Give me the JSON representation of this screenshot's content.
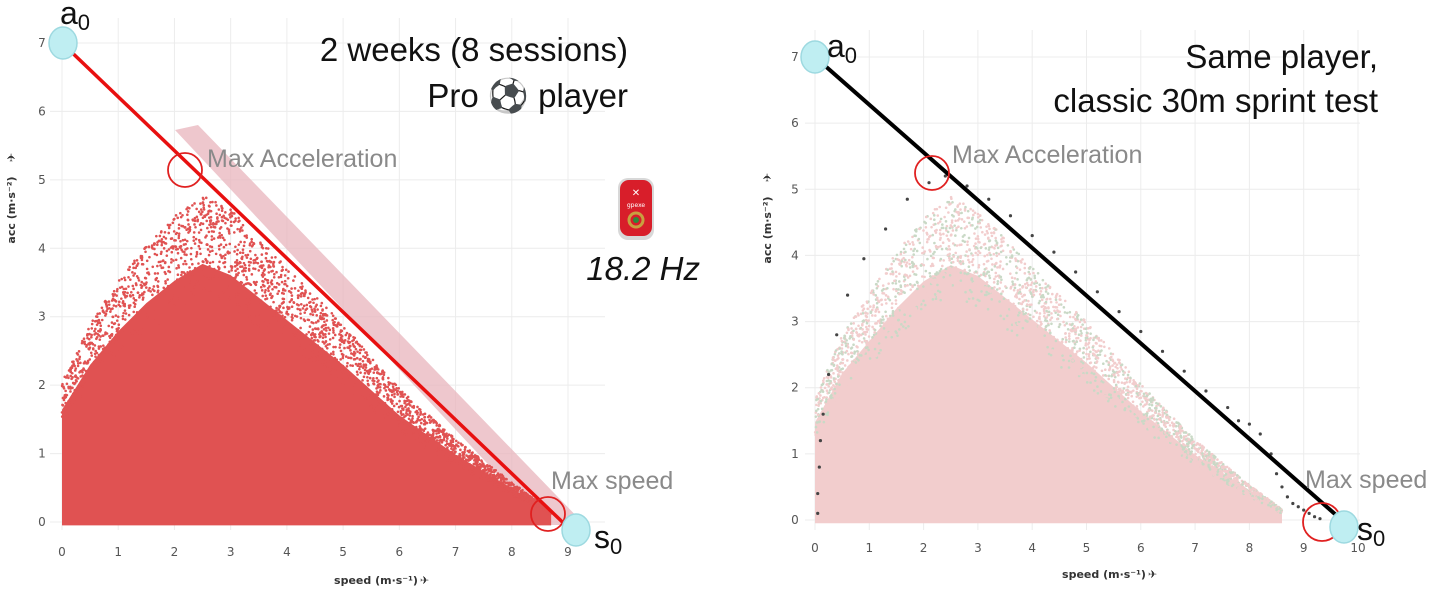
{
  "colors": {
    "left_points": "#e05252",
    "left_line": "#e81010",
    "left_band": "#e8b4bc",
    "right_bg_points": "#f2cdcd",
    "right_green_points": "#c9d9c6",
    "right_sprint_points": "#444444",
    "right_line": "#000000",
    "marker_circle": "#e02020",
    "endpoint_fill": "#bfeef2",
    "endpoint_stroke": "#9dd9e0",
    "annotation_text": "#8a8a8a"
  },
  "chart_data": [
    {
      "type": "scatter",
      "title": "2 weeks (8 sessions)",
      "subtitle": "Pro ⚽ player",
      "device_label": "18.2 Hz",
      "device_brand": "gpexe",
      "xlabel": "speed (m·s⁻¹)",
      "ylabel": "acc (m·s⁻²)",
      "xlim": [
        0,
        9.2
      ],
      "ylim": [
        -0.1,
        7.3
      ],
      "x_ticks": [
        "0",
        "1",
        "2",
        "3",
        "4",
        "5",
        "6",
        "7",
        "8",
        "9"
      ],
      "y_ticks": [
        "0",
        "1",
        "2",
        "3",
        "4",
        "5",
        "6",
        "7"
      ],
      "grid": true,
      "regression_line": {
        "from": [
          0,
          7.0
        ],
        "to": [
          8.9,
          0
        ]
      },
      "endpoints": [
        {
          "label": "a",
          "subscript": "0",
          "x": 0,
          "y": 7.0
        },
        {
          "label": "s",
          "subscript": "0",
          "x": 8.9,
          "y": 0
        }
      ],
      "annotations": [
        {
          "label": "Max Acceleration",
          "x": 2.25,
          "y": 5.2
        },
        {
          "label": "Max speed",
          "x": 8.6,
          "y": 0.2
        }
      ],
      "point_cloud": {
        "description_counts": "dense",
        "envelope": [
          [
            0,
            2.0
          ],
          [
            0.5,
            2.8
          ],
          [
            1,
            3.4
          ],
          [
            1.5,
            3.9
          ],
          [
            2,
            4.3
          ],
          [
            2.5,
            4.6
          ],
          [
            3,
            4.4
          ],
          [
            4,
            3.6
          ],
          [
            5,
            2.8
          ],
          [
            6,
            1.9
          ],
          [
            7,
            1.2
          ],
          [
            8,
            0.6
          ],
          [
            8.7,
            0.2
          ]
        ]
      }
    },
    {
      "type": "scatter",
      "title": "Same player,",
      "subtitle": "classic 30m sprint test",
      "xlabel": "speed (m·s⁻¹)",
      "ylabel": "acc (m·s⁻²)",
      "xlim": [
        0,
        10.4
      ],
      "ylim": [
        -0.1,
        7.3
      ],
      "x_ticks": [
        "0",
        "1",
        "2",
        "3",
        "4",
        "5",
        "6",
        "7",
        "8",
        "9",
        "10"
      ],
      "y_ticks": [
        "0",
        "1",
        "2",
        "3",
        "4",
        "5",
        "6",
        "7"
      ],
      "grid": true,
      "regression_line": {
        "from": [
          0,
          7.0
        ],
        "to": [
          9.7,
          0
        ]
      },
      "endpoints": [
        {
          "label": "a",
          "subscript": "0",
          "x": 0,
          "y": 7.0
        },
        {
          "label": "s",
          "subscript": "0",
          "x": 9.7,
          "y": 0
        }
      ],
      "annotations": [
        {
          "label": "Max Acceleration",
          "x": 2.25,
          "y": 5.2
        },
        {
          "label": "Max speed",
          "x": 9.3,
          "y": 0
        }
      ],
      "sprint_points": [
        [
          0.05,
          0.1
        ],
        [
          0.05,
          0.4
        ],
        [
          0.08,
          0.8
        ],
        [
          0.1,
          1.2
        ],
        [
          0.15,
          1.6
        ],
        [
          0.25,
          2.2
        ],
        [
          0.4,
          2.8
        ],
        [
          0.6,
          3.4
        ],
        [
          0.9,
          3.95
        ],
        [
          1.3,
          4.4
        ],
        [
          1.7,
          4.85
        ],
        [
          2.1,
          5.1
        ],
        [
          2.4,
          5.2
        ],
        [
          2.8,
          5.05
        ],
        [
          3.2,
          4.85
        ],
        [
          3.6,
          4.6
        ],
        [
          4.0,
          4.3
        ],
        [
          4.4,
          4.05
        ],
        [
          4.8,
          3.75
        ],
        [
          5.2,
          3.45
        ],
        [
          5.6,
          3.15
        ],
        [
          6.0,
          2.85
        ],
        [
          6.4,
          2.55
        ],
        [
          6.8,
          2.25
        ],
        [
          7.2,
          1.95
        ],
        [
          7.6,
          1.7
        ],
        [
          7.8,
          1.5
        ],
        [
          8.0,
          1.45
        ],
        [
          8.2,
          1.3
        ],
        [
          8.4,
          1.0
        ],
        [
          8.5,
          0.7
        ],
        [
          8.6,
          0.5
        ],
        [
          8.7,
          0.35
        ],
        [
          8.8,
          0.25
        ],
        [
          8.9,
          0.2
        ],
        [
          9.0,
          0.15
        ],
        [
          9.1,
          0.1
        ],
        [
          9.2,
          0.05
        ],
        [
          9.3,
          0.02
        ]
      ],
      "point_cloud": {
        "description_counts": "dense",
        "envelope": [
          [
            0,
            1.8
          ],
          [
            0.5,
            2.7
          ],
          [
            1,
            3.3
          ],
          [
            1.5,
            3.9
          ],
          [
            2,
            4.4
          ],
          [
            2.5,
            4.7
          ],
          [
            3,
            4.5
          ],
          [
            4,
            3.7
          ],
          [
            5,
            2.9
          ],
          [
            6,
            2.0
          ],
          [
            7,
            1.2
          ],
          [
            8,
            0.55
          ],
          [
            8.6,
            0.2
          ]
        ]
      }
    }
  ]
}
